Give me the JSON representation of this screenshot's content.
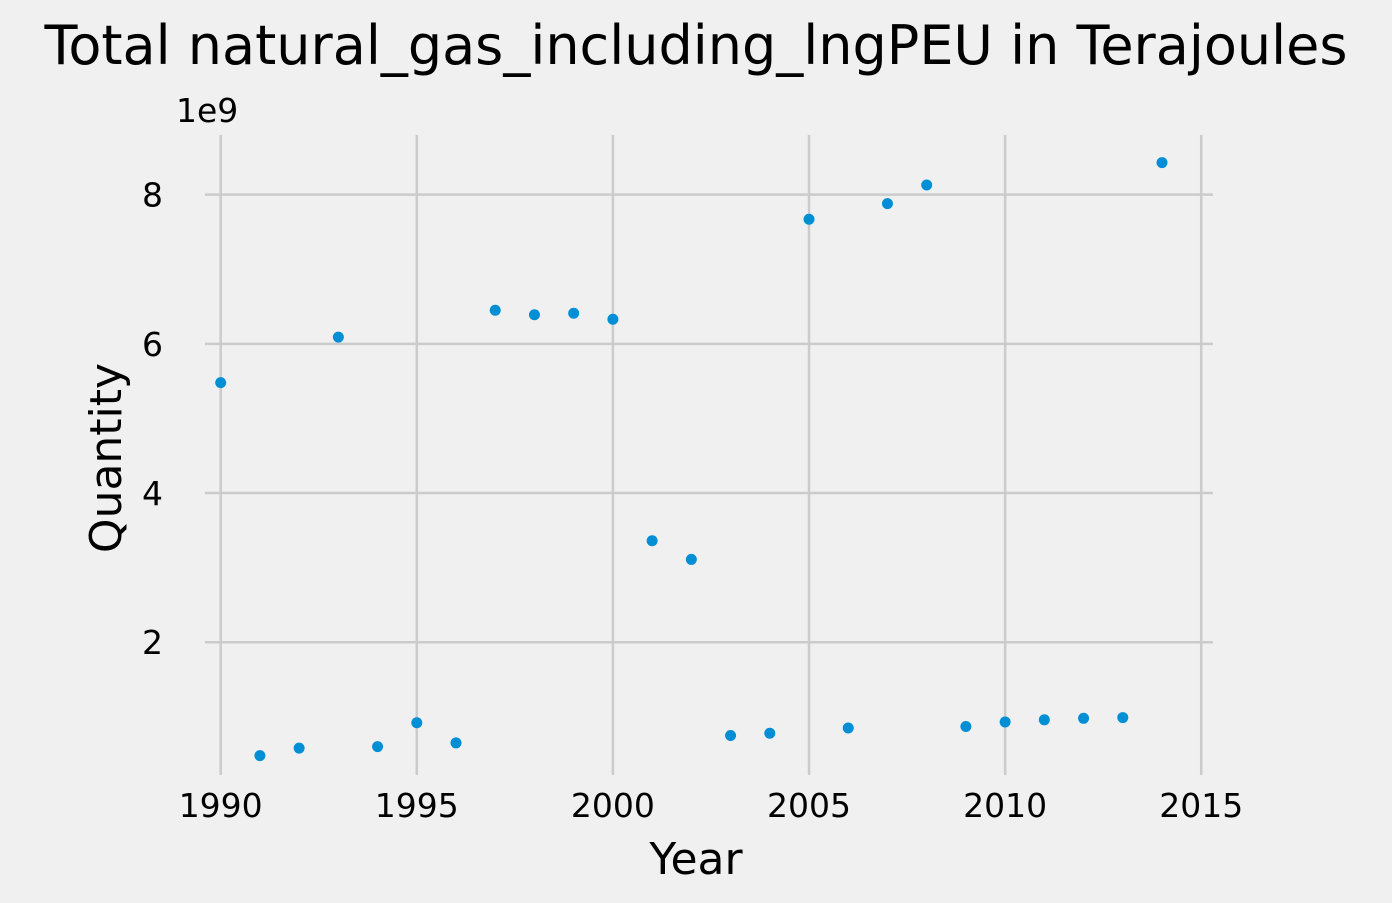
{
  "chart_data": {
    "type": "scatter",
    "title": "Total natural_gas_including_lngPEU in Terajoules",
    "xlabel": "Year",
    "ylabel": "Quantity",
    "y_offset_text": "1e9",
    "y_scale": 1000000000,
    "xlim": [
      1989.6,
      2015.3
    ],
    "ylim": [
      220000000,
      8800000000
    ],
    "x_ticks": [
      1990,
      1995,
      2000,
      2005,
      2010,
      2015
    ],
    "x_tick_labels": [
      "1990",
      "1995",
      "2000",
      "2005",
      "2010",
      "2015"
    ],
    "y_ticks": [
      2000000000,
      4000000000,
      6000000000,
      8000000000
    ],
    "y_tick_labels": [
      "2",
      "4",
      "6",
      "8"
    ],
    "grid": true,
    "series": [
      {
        "color": "#008fd5",
        "x": [
          1990,
          1991,
          1992,
          1993,
          1994,
          1995,
          1996,
          1997,
          1998,
          1999,
          2000,
          2001,
          2002,
          2003,
          2004,
          2005,
          2006,
          2007,
          2008,
          2009,
          2010,
          2011,
          2012,
          2013,
          2014
        ],
        "y": [
          5480000000,
          480000000,
          580000000,
          6090000000,
          600000000,
          920000000,
          650000000,
          6450000000,
          6390000000,
          6410000000,
          6330000000,
          3360000000,
          3110000000,
          750000000,
          780000000,
          7670000000,
          850000000,
          7880000000,
          8130000000,
          870000000,
          930000000,
          960000000,
          980000000,
          990000000,
          8430000000
        ]
      }
    ]
  }
}
